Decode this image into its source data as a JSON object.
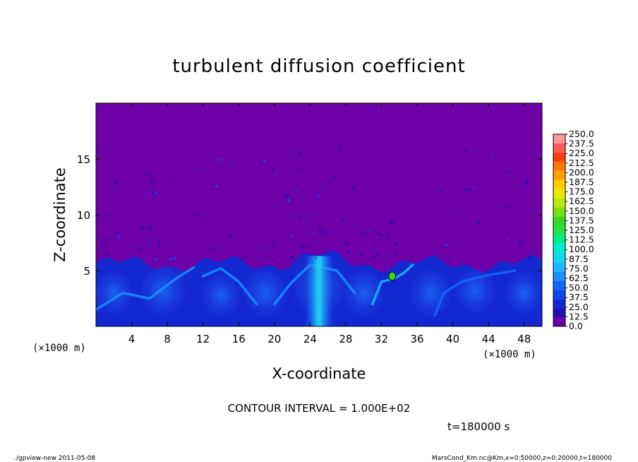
{
  "chart_data": {
    "type": "heatmap",
    "title": "turbulent diffusion coefficient",
    "xlabel": "X-coordinate",
    "ylabel": "Z-coordinate",
    "x_unit": "(×1000 m)",
    "y_unit": "(×1000 m)",
    "xlim": [
      0,
      50
    ],
    "ylim": [
      0,
      20
    ],
    "x_ticks": [
      4,
      8,
      12,
      16,
      20,
      24,
      28,
      32,
      36,
      40,
      44,
      48
    ],
    "y_ticks": [
      5,
      10,
      15
    ],
    "colorbar": {
      "levels": [
        "0.0",
        "12.5",
        "25.0",
        "37.5",
        "50.0",
        "62.5",
        "75.0",
        "87.5",
        "100.0",
        "112.5",
        "125.0",
        "137.5",
        "150.0",
        "162.5",
        "175.0",
        "187.5",
        "200.0",
        "212.5",
        "225.0",
        "237.5",
        "250.0"
      ],
      "colors": [
        "#6e00a8",
        "#1e10b4",
        "#1428d2",
        "#1048ea",
        "#1468ff",
        "#1890ff",
        "#1ab8ff",
        "#10d8f0",
        "#00ecd0",
        "#00ec90",
        "#20e448",
        "#38d820",
        "#78e010",
        "#b8e810",
        "#e8e800",
        "#ffcc00",
        "#ffa000",
        "#ff7800",
        "#ff3c14",
        "#ff5a5a",
        "#ff9a9a"
      ]
    },
    "background_value_range": [
      0,
      12.5
    ],
    "boundary_layer_top_km": 6,
    "plume": {
      "x_center_km": 25,
      "top_km": 6.3
    },
    "contour_interval": "CONTOUR INTERVAL = 1.000E+02",
    "time_label": "t=180000 s"
  },
  "footer": {
    "left": "./gpview-new  2011-05-08",
    "right": "MarsCond_Km.nc@Km,x=0:50000,z=0:20000,t=180000"
  }
}
